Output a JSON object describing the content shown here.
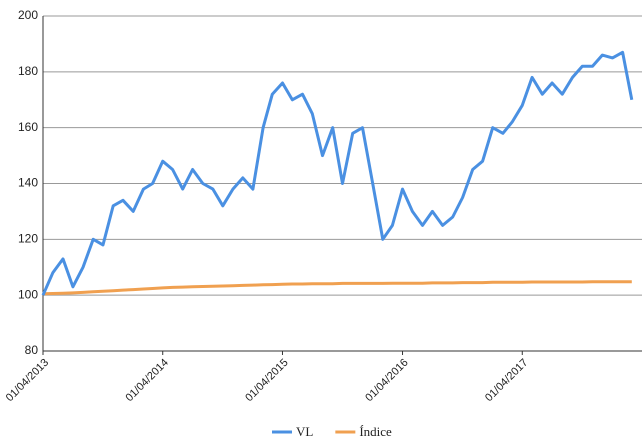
{
  "chart_data": {
    "type": "line",
    "x": [
      "01/04/2013",
      "01/05/2013",
      "01/06/2013",
      "01/07/2013",
      "01/08/2013",
      "01/09/2013",
      "01/10/2013",
      "01/11/2013",
      "01/12/2013",
      "01/01/2014",
      "01/02/2014",
      "01/03/2014",
      "01/04/2014",
      "01/05/2014",
      "01/06/2014",
      "01/07/2014",
      "01/08/2014",
      "01/09/2014",
      "01/10/2014",
      "01/11/2014",
      "01/12/2014",
      "01/01/2015",
      "01/02/2015",
      "01/03/2015",
      "01/04/2015",
      "01/05/2015",
      "01/06/2015",
      "01/07/2015",
      "01/08/2015",
      "01/09/2015",
      "01/10/2015",
      "01/11/2015",
      "01/12/2015",
      "01/01/2016",
      "01/02/2016",
      "01/03/2016",
      "01/04/2016",
      "01/05/2016",
      "01/06/2016",
      "01/07/2016",
      "01/08/2016",
      "01/09/2016",
      "01/10/2016",
      "01/11/2016",
      "01/12/2016",
      "01/01/2017",
      "01/02/2017",
      "01/03/2017",
      "01/04/2017",
      "01/05/2017",
      "01/06/2017",
      "01/07/2017",
      "01/08/2017",
      "01/09/2017",
      "01/10/2017",
      "01/11/2017",
      "01/12/2017",
      "01/01/2018",
      "01/02/2018",
      "01/03/2018"
    ],
    "series": [
      {
        "name": "VL",
        "color": "#4a90e2",
        "values": [
          100,
          108,
          113,
          103,
          110,
          120,
          118,
          132,
          134,
          130,
          138,
          140,
          148,
          145,
          138,
          145,
          140,
          138,
          132,
          138,
          142,
          138,
          160,
          172,
          176,
          170,
          172,
          165,
          150,
          160,
          140,
          158,
          160,
          140,
          120,
          125,
          138,
          130,
          125,
          130,
          125,
          128,
          135,
          145,
          148,
          160,
          158,
          162,
          168,
          178,
          172,
          176,
          172,
          178,
          182,
          182,
          186,
          185,
          187,
          170
        ]
      },
      {
        "name": "Índice",
        "color": "#f0a050",
        "values": [
          100.5,
          100.6,
          100.7,
          100.8,
          101.0,
          101.2,
          101.4,
          101.6,
          101.8,
          102.0,
          102.2,
          102.4,
          102.6,
          102.8,
          102.9,
          103.0,
          103.1,
          103.2,
          103.3,
          103.4,
          103.5,
          103.6,
          103.7,
          103.8,
          103.9,
          104.0,
          104.0,
          104.1,
          104.1,
          104.1,
          104.2,
          104.2,
          104.2,
          104.2,
          104.2,
          104.3,
          104.3,
          104.3,
          104.3,
          104.4,
          104.4,
          104.4,
          104.5,
          104.5,
          104.5,
          104.6,
          104.6,
          104.6,
          104.6,
          104.7,
          104.7,
          104.7,
          104.7,
          104.7,
          104.7,
          104.8,
          104.8,
          104.8,
          104.8,
          104.8
        ]
      }
    ],
    "xlim": [
      "01/04/2013",
      "01/04/2018"
    ],
    "xticks": [
      "01/04/2013",
      "01/04/2014",
      "01/04/2015",
      "01/04/2016",
      "01/04/2017"
    ],
    "ylim": [
      80,
      200
    ],
    "yticks": [
      80,
      100,
      120,
      140,
      160,
      180,
      200
    ],
    "grid": true,
    "legend": "bottom"
  }
}
